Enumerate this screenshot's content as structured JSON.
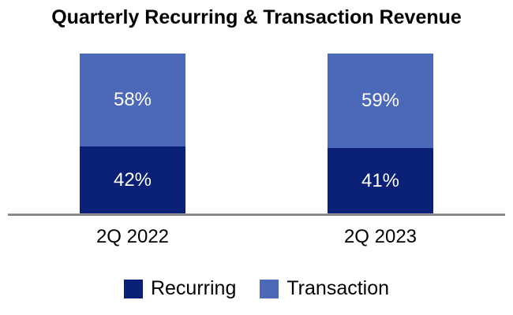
{
  "chart_data": {
    "type": "bar",
    "stacked": true,
    "percent_stack": true,
    "title": "Quarterly Recurring & Transaction Revenue",
    "categories": [
      "2Q 2022",
      "2Q 2023"
    ],
    "series": [
      {
        "name": "Recurring",
        "color": "#0B2077",
        "values": [
          42,
          41
        ],
        "labels": [
          "42%",
          "41%"
        ]
      },
      {
        "name": "Transaction",
        "color": "#4C68B8",
        "values": [
          58,
          59
        ],
        "labels": [
          "58%",
          "59%"
        ]
      }
    ],
    "xlabel": "",
    "ylabel": "",
    "ylim": [
      0,
      100
    ],
    "grid": false,
    "legend_position": "bottom",
    "value_label_color": "#ffffff",
    "axis_line_color": "#7f7f7f"
  }
}
